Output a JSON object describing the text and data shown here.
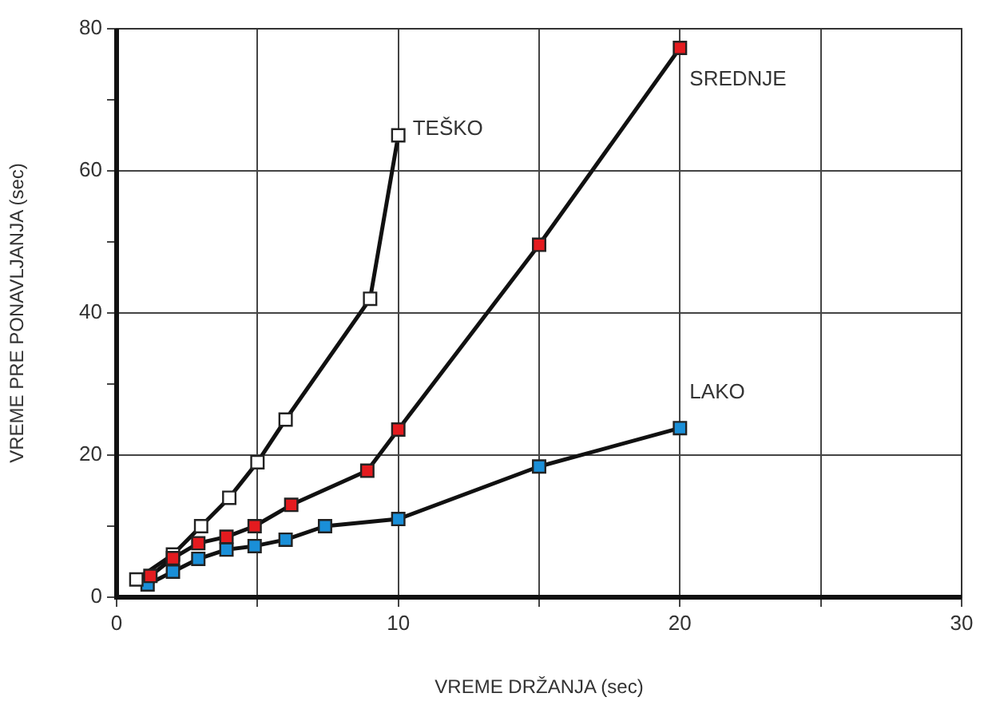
{
  "chart_data": {
    "type": "line",
    "xlabel": "VREME DRŽANJA (sec)",
    "ylabel": "VREME PRE PONAVLJANJA (sec)",
    "xlim": [
      0,
      30
    ],
    "xticks": [
      0,
      {
        "value": 5,
        "label": null
      },
      10,
      {
        "value": 15,
        "label": null
      },
      20,
      {
        "value": 25,
        "label": null
      },
      30
    ],
    "ylim": [
      0,
      80
    ],
    "yticks": [
      0,
      {
        "value": 10,
        "label": null
      },
      20,
      {
        "value": 30,
        "label": null
      },
      40,
      {
        "value": 50,
        "label": null
      },
      60,
      {
        "value": 70,
        "label": null
      },
      80
    ],
    "grid": true,
    "legend": false,
    "marker": "square",
    "line_style": "solid",
    "series": [
      {
        "name": "TEŠKO",
        "color": "#ffffff",
        "x": [
          0.7,
          2,
          3,
          4,
          5,
          6,
          9,
          10
        ],
        "values": [
          2.5,
          6,
          10,
          14,
          19,
          25,
          42,
          65
        ]
      },
      {
        "name": "SREDNJE",
        "color": "#e41b1f",
        "x": [
          1.2,
          2,
          2.9,
          3.9,
          4.9,
          6.2,
          8.9,
          10,
          15,
          20
        ],
        "values": [
          3,
          5.5,
          7.6,
          8.5,
          10,
          13,
          17.8,
          23.6,
          49.6,
          77.3
        ]
      },
      {
        "name": "LAKO",
        "color": "#1a8fd8",
        "x": [
          1.1,
          2,
          2.9,
          3.9,
          4.9,
          6,
          7.4,
          10,
          15,
          20
        ],
        "values": [
          1.8,
          3.6,
          5.4,
          6.7,
          7.2,
          8.1,
          10,
          11,
          18.4,
          23.8
        ]
      }
    ]
  }
}
